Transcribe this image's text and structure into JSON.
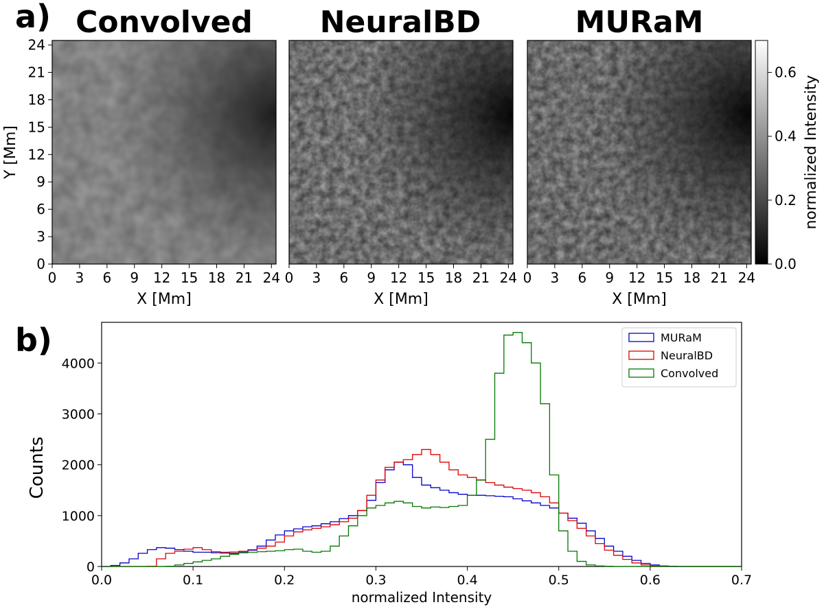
{
  "panel_a": {
    "label": "a)",
    "titles": [
      "Convolved",
      "NeuralBD",
      "MURaM"
    ],
    "xlabel": "X [Mm]",
    "ylabel": "Y [Mm]",
    "ticks": [
      "0",
      "3",
      "6",
      "9",
      "12",
      "15",
      "18",
      "21",
      "24"
    ],
    "colorbar": {
      "label": "normalized Intensity",
      "ticks": [
        "0.0",
        "0.2",
        "0.4",
        "0.6"
      ],
      "tick_values": [
        0.0,
        0.2,
        0.4,
        0.6
      ],
      "range": [
        0.0,
        0.7
      ]
    }
  },
  "chart_data": {
    "type": "histogram",
    "label": "b)",
    "xlabel": "normalized Intensity",
    "ylabel": "Counts",
    "xlim": [
      0.0,
      0.7
    ],
    "ylim": [
      0,
      4800
    ],
    "xticks": [
      "0.0",
      "0.1",
      "0.2",
      "0.3",
      "0.4",
      "0.5",
      "0.6",
      "0.7"
    ],
    "yticks": [
      "0",
      "1000",
      "2000",
      "3000",
      "4000"
    ],
    "bin_start": 0.0,
    "bin_width": 0.01,
    "legend_position": "top-right",
    "series": [
      {
        "name": "MURaM",
        "color": "#0000cc",
        "values": [
          0,
          20,
          70,
          150,
          260,
          330,
          370,
          360,
          330,
          300,
          280,
          280,
          270,
          265,
          260,
          280,
          320,
          400,
          520,
          620,
          700,
          740,
          780,
          800,
          840,
          880,
          940,
          1000,
          1100,
          1300,
          1650,
          1900,
          2050,
          2000,
          1750,
          1600,
          1550,
          1500,
          1450,
          1420,
          1400,
          1400,
          1390,
          1380,
          1370,
          1330,
          1290,
          1250,
          1200,
          1150,
          1050,
          950,
          850,
          700,
          550,
          400,
          300,
          200,
          120,
          60,
          30,
          10,
          5,
          0,
          0,
          0,
          0,
          0,
          0,
          0
        ]
      },
      {
        "name": "NeuralBD",
        "color": "#dd0000",
        "values": [
          0,
          0,
          0,
          0,
          0,
          5,
          150,
          260,
          300,
          340,
          370,
          330,
          290,
          280,
          285,
          300,
          330,
          360,
          400,
          480,
          600,
          680,
          720,
          750,
          780,
          820,
          880,
          950,
          1100,
          1400,
          1700,
          1950,
          2050,
          2100,
          2200,
          2300,
          2200,
          2050,
          1900,
          1800,
          1750,
          1700,
          1650,
          1600,
          1560,
          1530,
          1500,
          1450,
          1370,
          1250,
          1050,
          900,
          750,
          600,
          450,
          320,
          220,
          140,
          70,
          30,
          10,
          0,
          0,
          0,
          0,
          0,
          0,
          0,
          0,
          0
        ]
      },
      {
        "name": "Convolved",
        "color": "#007700",
        "values": [
          0,
          0,
          0,
          0,
          0,
          0,
          0,
          5,
          30,
          60,
          90,
          120,
          150,
          200,
          240,
          270,
          280,
          290,
          300,
          310,
          330,
          340,
          300,
          280,
          300,
          400,
          600,
          800,
          1000,
          1150,
          1200,
          1250,
          1280,
          1250,
          1180,
          1150,
          1170,
          1160,
          1180,
          1200,
          1400,
          1700,
          2500,
          3800,
          4550,
          4600,
          4400,
          4000,
          3200,
          1800,
          700,
          300,
          100,
          30,
          10,
          5,
          0,
          0,
          0,
          0,
          0,
          0,
          0,
          0,
          0,
          0,
          0,
          0,
          0,
          0
        ]
      }
    ]
  }
}
